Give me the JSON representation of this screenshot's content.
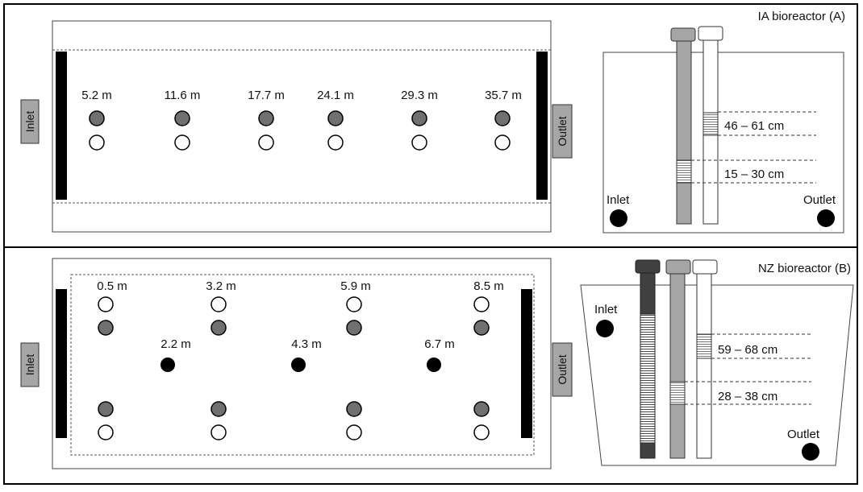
{
  "colors": {
    "frame": "#000000",
    "well_grey": "#707070",
    "well_white": "#ffffff",
    "well_black": "#000000",
    "pipe_grey": "#a6a6a6",
    "pipe_dark": "#404040",
    "label_box": "#a6a6a6",
    "baffle": "#000000"
  },
  "panel_a": {
    "title": "IA bioreactor (A)",
    "inlet_label": "Inlet",
    "outlet_label": "Outlet",
    "side_inlet": "Inlet",
    "side_outlet": "Outlet",
    "distances": [
      "5.2 m",
      "11.6 m",
      "17.7 m",
      "24.1 m",
      "29.3 m",
      "35.7 m"
    ],
    "depths": [
      "46 – 61 cm",
      "15 – 30 cm"
    ]
  },
  "panel_b": {
    "title": "NZ bioreactor (B)",
    "inlet_label": "Inlet",
    "outlet_label": "Outlet",
    "side_inlet": "Inlet",
    "side_outlet": "Outlet",
    "top_distances": [
      "0.5 m",
      "3.2 m",
      "5.9 m",
      "8.5 m"
    ],
    "mid_distances": [
      "2.2 m",
      "4.3 m",
      "6.7 m"
    ],
    "depths": [
      "59 – 68 cm",
      "28 – 38 cm"
    ]
  }
}
